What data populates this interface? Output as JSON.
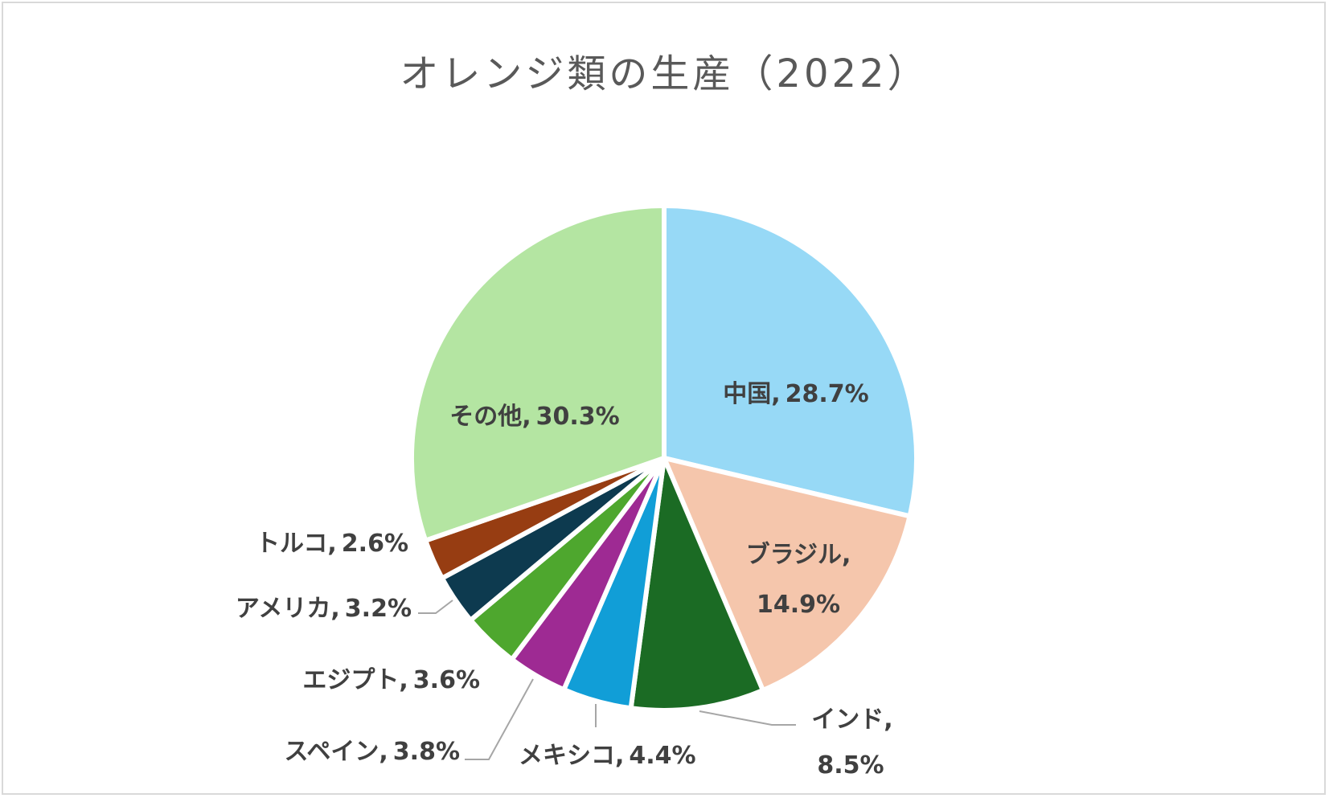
{
  "chart_data": {
    "type": "pie",
    "title": "オレンジ類の生産（2022）",
    "categories": [
      "中国",
      "ブラジル",
      "インド",
      "メキシコ",
      "スペイン",
      "エジプト",
      "アメリカ",
      "トルコ",
      "その他"
    ],
    "values": [
      28.7,
      14.9,
      8.5,
      4.4,
      3.8,
      3.6,
      3.2,
      2.6,
      30.3
    ],
    "unit": "%",
    "colors": [
      "#97d9f6",
      "#f5c6ac",
      "#1b6b24",
      "#119ed7",
      "#9e2a93",
      "#4ea72e",
      "#0d3a4f",
      "#973d12",
      "#b4e5a2"
    ],
    "data_labels": [
      {
        "name": "中国",
        "value": "28.7%",
        "text": "中国, 28.7%"
      },
      {
        "name": "ブラジル",
        "value": "14.9%",
        "text": "ブラジル, 14.9%"
      },
      {
        "name": "インド",
        "value": "8.5%",
        "text": "インド, 8.5%"
      },
      {
        "name": "メキシコ",
        "value": "4.4%",
        "text": "メキシコ, 4.4%"
      },
      {
        "name": "スペイン",
        "value": "3.8%",
        "text": "スペイン, 3.8%"
      },
      {
        "name": "エジプト",
        "value": "3.6%",
        "text": "エジプト, 3.6%"
      },
      {
        "name": "アメリカ",
        "value": "3.2%",
        "text": "アメリカ, 3.2%"
      },
      {
        "name": "トルコ",
        "value": "2.6%",
        "text": "トルコ, 2.6%"
      },
      {
        "name": "その他",
        "value": "30.3%",
        "text": "その他, 30.3%"
      }
    ],
    "start_angle_deg": 0,
    "direction": "clockwise",
    "legend": "none"
  },
  "labels": {
    "china": {
      "name": "中国,",
      "value": "28.7%"
    },
    "brazil": {
      "name": "ブラジル,",
      "value": "14.9%"
    },
    "india": {
      "name": "インド,",
      "value": "8.5%"
    },
    "mexico": {
      "name": "メキシコ,",
      "value": "4.4%"
    },
    "spain": {
      "name": "スペイン,",
      "value": "3.8%"
    },
    "egypt": {
      "name": "エジプト,",
      "value": "3.6%"
    },
    "usa": {
      "name": "アメリカ,",
      "value": "3.2%"
    },
    "turkey": {
      "name": "トルコ,",
      "value": "2.6%"
    },
    "other": {
      "name": "その他,",
      "value": "30.3%"
    }
  }
}
